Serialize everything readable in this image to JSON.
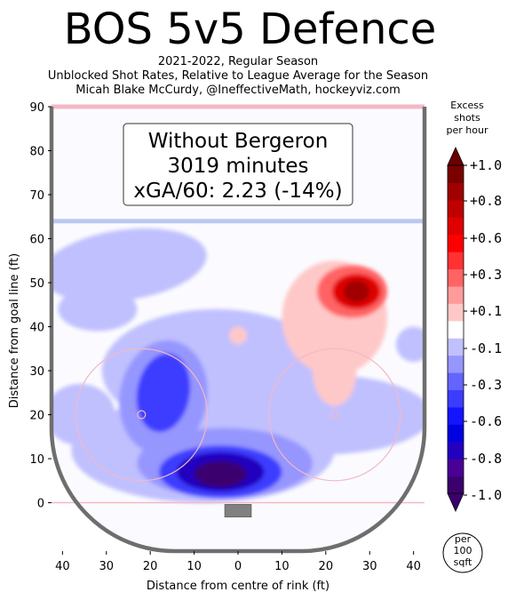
{
  "title": "BOS 5v5 Defence",
  "subtitle_lines": [
    "2021-2022, Regular Season",
    "Unblocked Shot Rates, Relative to League Average for the Season",
    "Micah Blake McCurdy, @IneffectiveMath, hockeyviz.com"
  ],
  "annotation_lines": [
    "Without Bergeron",
    "3019 minutes",
    "xGA/60: 2.23 (-14%)"
  ],
  "colorbar": {
    "title_lines": [
      "Excess",
      "shots",
      "per hour"
    ],
    "tick_labels": [
      "+1.0",
      "+0.8",
      "+0.6",
      "+0.3",
      "+0.1",
      "-0.1",
      "-0.3",
      "-0.6",
      "-0.8",
      "-1.0"
    ],
    "unit_lines": [
      "per",
      "100",
      "sqft"
    ],
    "colors": [
      "#3b006e",
      "#4a0096",
      "#2200c0",
      "#0000e0",
      "#1414ff",
      "#3c3cff",
      "#6464ff",
      "#9696ff",
      "#c0c0ff",
      "#ffffff",
      "#ffc8c8",
      "#ff9b9b",
      "#ff6464",
      "#ff3232",
      "#ff0000",
      "#e00000",
      "#c00000",
      "#a00000",
      "#7a0000"
    ],
    "extend_low": "#3b006e",
    "extend_high": "#6a0000"
  },
  "chart_data": {
    "type": "heatmap",
    "xlabel": "Distance from centre of rink (ft)",
    "ylabel": "Distance from goal line (ft)",
    "xlim": [
      -42.5,
      42.5
    ],
    "ylim": [
      -11,
      90
    ],
    "xticks": [
      -40,
      -30,
      -20,
      -10,
      0,
      10,
      20,
      30,
      40
    ],
    "xtick_labels": [
      "40",
      "30",
      "20",
      "10",
      "0",
      "10",
      "20",
      "30",
      "40"
    ],
    "yticks": [
      0,
      10,
      20,
      30,
      40,
      50,
      60,
      70,
      80,
      90
    ],
    "value_range": [
      -1.0,
      1.0
    ],
    "hotspots": [
      {
        "x": 26.5,
        "y": 48,
        "peak": 0.85
      },
      {
        "x": 22,
        "y": 34,
        "peak": 0.1
      },
      {
        "x": 1,
        "y": 38,
        "peak": 0.15
      },
      {
        "x": -5,
        "y": 6,
        "peak": -1.0
      },
      {
        "x": -19,
        "y": 24,
        "peak": -0.35
      },
      {
        "x": -5,
        "y": 30,
        "peak": -0.15
      },
      {
        "x": -28,
        "y": 55,
        "peak": -0.15
      },
      {
        "x": -33,
        "y": 44,
        "peak": -0.12
      },
      {
        "x": 30,
        "y": 17,
        "peak": -0.12
      },
      {
        "x": 10,
        "y": 10,
        "peak": -0.2
      }
    ]
  }
}
